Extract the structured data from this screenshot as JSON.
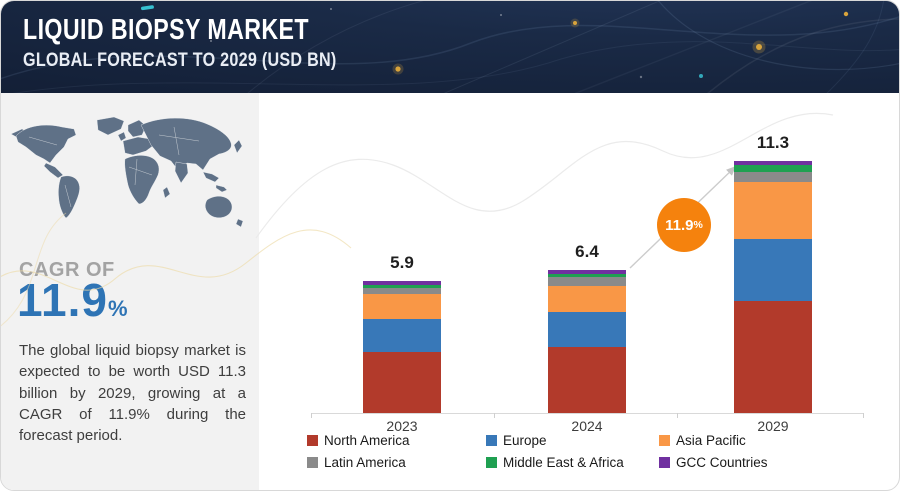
{
  "header": {
    "title": "LIQUID BIOPSY MARKET",
    "subtitle": "GLOBAL FORECAST TO 2029 (USD BN)"
  },
  "sidebar": {
    "cagr_label": "CAGR OF",
    "cagr_value": "11.9",
    "cagr_percent": "%",
    "description": "The global liquid biopsy market is expected to be worth USD 11.3 billion by 2029, growing at a CAGR of 11.9% during the forecast period."
  },
  "callout": {
    "value": "11.9",
    "percent": "%",
    "color": "#f5820d"
  },
  "colors": {
    "header_bg": "#1a2a46",
    "panel_bg": "#f2f2f2",
    "accent_blue": "#2e74b5",
    "axis": "#d9d9d9",
    "map_fill": "#5f7187"
  },
  "chart_data": {
    "type": "bar",
    "stacked": true,
    "title": "Liquid Biopsy Market, Global Forecast (USD BN)",
    "xlabel": "",
    "ylabel": "",
    "grid": false,
    "legend_position": "bottom",
    "categories": [
      "2023",
      "2024",
      "2029"
    ],
    "totals": [
      5.9,
      6.4,
      11.3
    ],
    "total_labels": [
      "5.9",
      "6.4",
      "11.3"
    ],
    "series": [
      {
        "name": "North America",
        "color": "#b23a2b",
        "values": [
          2.75,
          2.95,
          5.0
        ]
      },
      {
        "name": "Europe",
        "color": "#3878b8",
        "values": [
          1.46,
          1.6,
          2.82
        ]
      },
      {
        "name": "Asia Pacific",
        "color": "#f99746",
        "values": [
          1.11,
          1.16,
          2.56
        ]
      },
      {
        "name": "Latin America",
        "color": "#8a8a8a",
        "values": [
          0.27,
          0.39,
          0.45
        ]
      },
      {
        "name": "Middle East & Africa",
        "color": "#1fa051",
        "values": [
          0.13,
          0.15,
          0.27
        ]
      },
      {
        "name": "GCC Countries",
        "color": "#7030a0",
        "values": [
          0.18,
          0.15,
          0.2
        ]
      }
    ],
    "annotation": {
      "text": "11.9%",
      "type": "growth-callout",
      "between": [
        "2024",
        "2029"
      ]
    }
  }
}
